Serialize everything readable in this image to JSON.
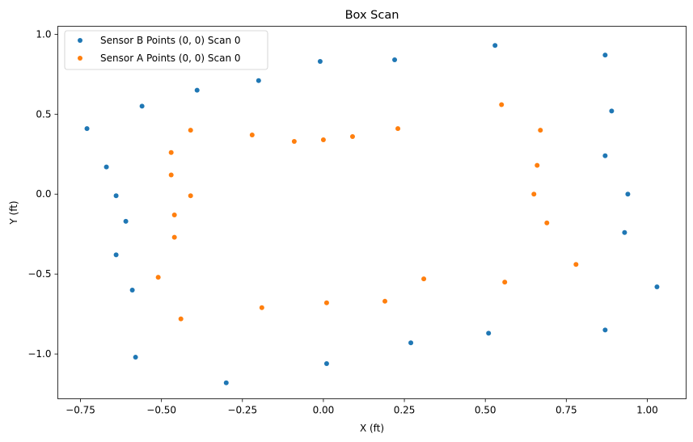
{
  "chart_data": {
    "type": "scatter",
    "title": "Box Scan",
    "xlabel": "X (ft)",
    "ylabel": "Y (ft)",
    "xlim": [
      -0.82,
      1.12
    ],
    "ylim": [
      -1.28,
      1.05
    ],
    "xticks": [
      -0.75,
      -0.5,
      -0.25,
      0.0,
      0.25,
      0.5,
      0.75,
      1.0
    ],
    "xtick_labels": [
      "−0.75",
      "−0.50",
      "−0.25",
      "0.00",
      "0.25",
      "0.50",
      "0.75",
      "1.00"
    ],
    "yticks": [
      -1.0,
      -0.5,
      0.0,
      0.5,
      1.0
    ],
    "ytick_labels": [
      "−1.0",
      "−0.5",
      "0.0",
      "0.5",
      "1.0"
    ],
    "grid": false,
    "legend_position": "upper-left",
    "series": [
      {
        "name": "Sensor B Points (0, 0) Scan 0",
        "color": "#1f77b4",
        "points": [
          [
            -0.73,
            0.41
          ],
          [
            -0.56,
            0.55
          ],
          [
            -0.39,
            0.65
          ],
          [
            -0.2,
            0.71
          ],
          [
            -0.01,
            0.83
          ],
          [
            0.22,
            0.84
          ],
          [
            0.53,
            0.93
          ],
          [
            0.87,
            0.87
          ],
          [
            0.89,
            0.52
          ],
          [
            0.87,
            0.24
          ],
          [
            0.94,
            0.0
          ],
          [
            0.93,
            -0.24
          ],
          [
            1.03,
            -0.58
          ],
          [
            0.87,
            -0.85
          ],
          [
            0.51,
            -0.87
          ],
          [
            0.27,
            -0.93
          ],
          [
            0.01,
            -1.06
          ],
          [
            -0.3,
            -1.18
          ],
          [
            -0.58,
            -1.02
          ],
          [
            -0.59,
            -0.6
          ],
          [
            -0.64,
            -0.38
          ],
          [
            -0.61,
            -0.17
          ],
          [
            -0.64,
            -0.01
          ],
          [
            -0.67,
            0.17
          ]
        ]
      },
      {
        "name": "Sensor A Points (0, 0) Scan 0",
        "color": "#ff7f0e",
        "points": [
          [
            -0.47,
            0.26
          ],
          [
            -0.41,
            0.4
          ],
          [
            -0.22,
            0.37
          ],
          [
            -0.09,
            0.33
          ],
          [
            0.0,
            0.34
          ],
          [
            0.09,
            0.36
          ],
          [
            0.23,
            0.41
          ],
          [
            0.55,
            0.56
          ],
          [
            0.67,
            0.4
          ],
          [
            0.66,
            0.18
          ],
          [
            0.65,
            0.0
          ],
          [
            0.69,
            -0.18
          ],
          [
            0.78,
            -0.44
          ],
          [
            0.56,
            -0.55
          ],
          [
            0.31,
            -0.53
          ],
          [
            0.19,
            -0.67
          ],
          [
            0.01,
            -0.68
          ],
          [
            -0.19,
            -0.71
          ],
          [
            -0.44,
            -0.78
          ],
          [
            -0.51,
            -0.52
          ],
          [
            -0.46,
            -0.27
          ],
          [
            -0.46,
            -0.13
          ],
          [
            -0.41,
            -0.01
          ],
          [
            -0.47,
            0.12
          ]
        ]
      }
    ]
  }
}
